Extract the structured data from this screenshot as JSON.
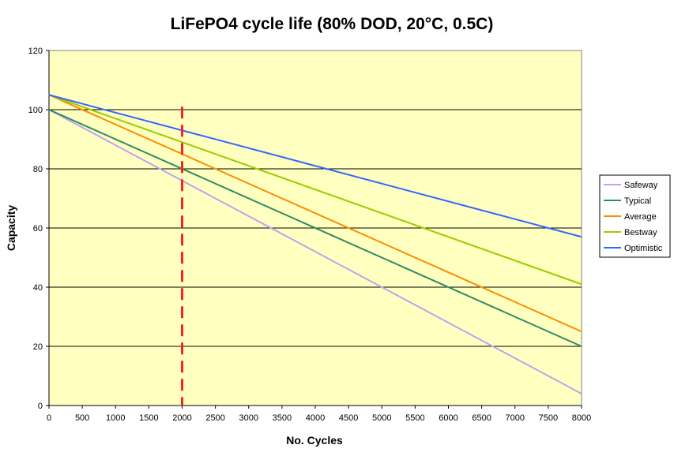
{
  "chart_data": {
    "type": "line",
    "title": "LiFePO4 cycle life (80% DOD, 20°C, 0.5C)",
    "xlabel": "No. Cycles",
    "ylabel": "Capacity",
    "xlim": [
      0,
      8000
    ],
    "ylim": [
      0,
      120
    ],
    "xticks": [
      0,
      500,
      1000,
      1500,
      2000,
      2500,
      3000,
      3500,
      4000,
      4500,
      5000,
      5500,
      6000,
      6500,
      7000,
      7500,
      8000
    ],
    "yticks": [
      0,
      20,
      40,
      60,
      80,
      100,
      120
    ],
    "grid": "horizontal",
    "background_color": "#ffffc0",
    "legend_position": "right",
    "series": [
      {
        "name": "Safeway",
        "color": "#c3a0f0",
        "x": [
          0,
          8000
        ],
        "y": [
          100,
          4
        ]
      },
      {
        "name": "Typical",
        "color": "#2e8b64",
        "x": [
          0,
          8000
        ],
        "y": [
          100,
          20
        ]
      },
      {
        "name": "Average",
        "color": "#ff8c00",
        "x": [
          0,
          8000
        ],
        "y": [
          105,
          25
        ]
      },
      {
        "name": "Bestway",
        "color": "#99cc00",
        "x": [
          0,
          8000
        ],
        "y": [
          105,
          41
        ]
      },
      {
        "name": "Optimistic",
        "color": "#3366ff",
        "x": [
          0,
          8000
        ],
        "y": [
          105,
          57
        ]
      }
    ],
    "reference_line": {
      "x": 2000,
      "y_range": [
        0,
        101
      ],
      "color": "#ff2020",
      "style": "dashed"
    }
  }
}
